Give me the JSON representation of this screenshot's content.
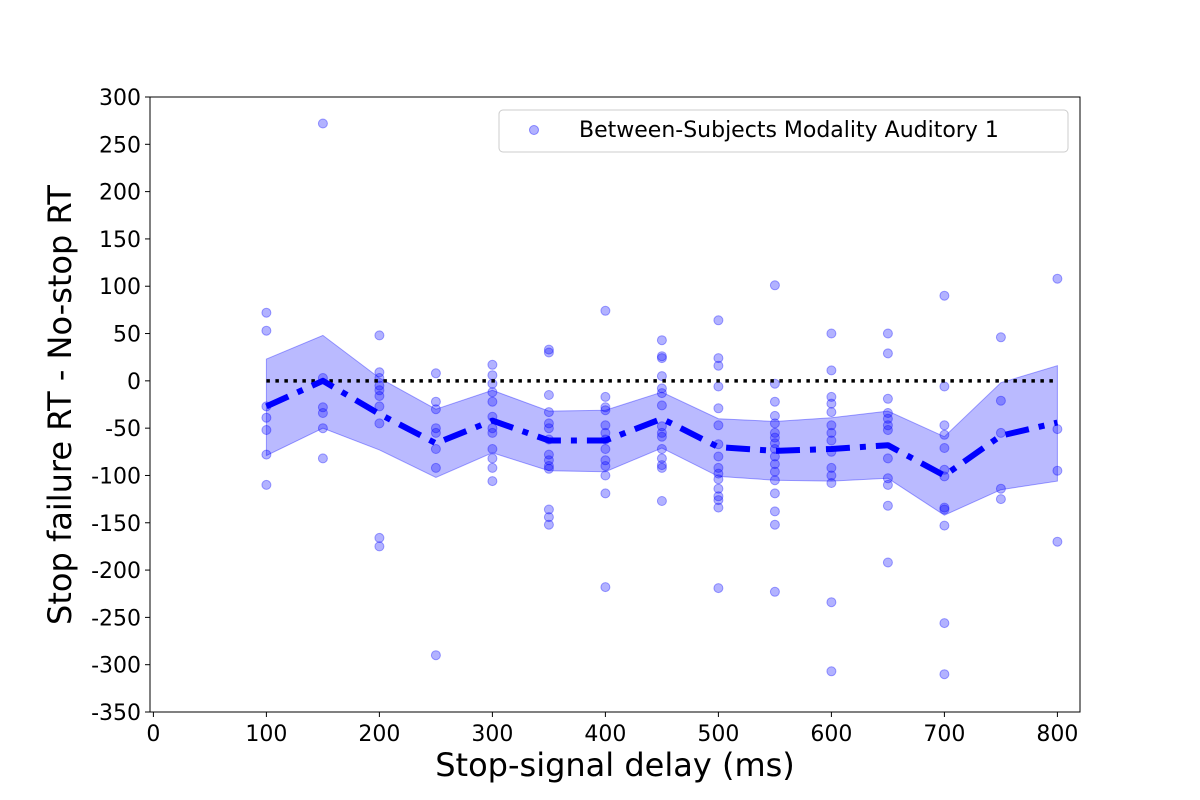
{
  "chart_data": {
    "type": "scatter",
    "xlabel": "Stop-signal delay (ms)",
    "ylabel": "Stop failure RT - No-stop RT",
    "xlim": [
      -3,
      820
    ],
    "ylim": [
      -350,
      300
    ],
    "xticks": [
      0,
      100,
      200,
      300,
      400,
      500,
      600,
      700,
      800
    ],
    "yticks": [
      300,
      250,
      200,
      150,
      100,
      50,
      0,
      -50,
      -100,
      -150,
      -200,
      -250,
      -300,
      -350
    ],
    "grid": false,
    "legend_position": "top-right",
    "reference_line_y": 0,
    "series": [
      {
        "name": "Between-Subjects Modality Auditory 1",
        "kind": "scatter",
        "color": "#0000ff",
        "points": [
          [
            100,
            72
          ],
          [
            100,
            53
          ],
          [
            100,
            -27
          ],
          [
            100,
            -39
          ],
          [
            100,
            -52
          ],
          [
            100,
            -78
          ],
          [
            100,
            -110
          ],
          [
            150,
            272
          ],
          [
            150,
            3
          ],
          [
            150,
            -28
          ],
          [
            150,
            -34
          ],
          [
            150,
            -50
          ],
          [
            150,
            -82
          ],
          [
            200,
            48
          ],
          [
            200,
            9
          ],
          [
            200,
            3
          ],
          [
            200,
            -5
          ],
          [
            200,
            -10
          ],
          [
            200,
            -16
          ],
          [
            200,
            -27
          ],
          [
            200,
            -45
          ],
          [
            200,
            -166
          ],
          [
            200,
            -175
          ],
          [
            250,
            8
          ],
          [
            250,
            -22
          ],
          [
            250,
            -30
          ],
          [
            250,
            -50
          ],
          [
            250,
            -55
          ],
          [
            250,
            -72
          ],
          [
            250,
            -92
          ],
          [
            250,
            -290
          ],
          [
            300,
            17
          ],
          [
            300,
            6
          ],
          [
            300,
            -3
          ],
          [
            300,
            -12
          ],
          [
            300,
            -22
          ],
          [
            300,
            -38
          ],
          [
            300,
            -50
          ],
          [
            300,
            -55
          ],
          [
            300,
            -72
          ],
          [
            300,
            -82
          ],
          [
            300,
            -92
          ],
          [
            300,
            -106
          ],
          [
            350,
            33
          ],
          [
            350,
            30
          ],
          [
            350,
            -15
          ],
          [
            350,
            -33
          ],
          [
            350,
            -45
          ],
          [
            350,
            -50
          ],
          [
            350,
            -62
          ],
          [
            350,
            -78
          ],
          [
            350,
            -84
          ],
          [
            350,
            -90
          ],
          [
            350,
            -93
          ],
          [
            350,
            -136
          ],
          [
            350,
            -144
          ],
          [
            350,
            -152
          ],
          [
            400,
            74
          ],
          [
            400,
            -17
          ],
          [
            400,
            -28
          ],
          [
            400,
            -31
          ],
          [
            400,
            -47
          ],
          [
            400,
            -55
          ],
          [
            400,
            -62
          ],
          [
            400,
            -72
          ],
          [
            400,
            -84
          ],
          [
            400,
            -90
          ],
          [
            400,
            -100
          ],
          [
            400,
            -119
          ],
          [
            400,
            -218
          ],
          [
            450,
            43
          ],
          [
            450,
            26
          ],
          [
            450,
            24
          ],
          [
            450,
            5
          ],
          [
            450,
            -8
          ],
          [
            450,
            -13
          ],
          [
            450,
            -26
          ],
          [
            450,
            -48
          ],
          [
            450,
            -55
          ],
          [
            450,
            -59
          ],
          [
            450,
            -72
          ],
          [
            450,
            -82
          ],
          [
            450,
            -89
          ],
          [
            450,
            -92
          ],
          [
            450,
            -127
          ],
          [
            500,
            64
          ],
          [
            500,
            24
          ],
          [
            500,
            16
          ],
          [
            500,
            -6
          ],
          [
            500,
            -29
          ],
          [
            500,
            -47
          ],
          [
            500,
            -67
          ],
          [
            500,
            -80
          ],
          [
            500,
            -92
          ],
          [
            500,
            -98
          ],
          [
            500,
            -104
          ],
          [
            500,
            -114
          ],
          [
            500,
            -122
          ],
          [
            500,
            -126
          ],
          [
            500,
            -134
          ],
          [
            500,
            -219
          ],
          [
            550,
            101
          ],
          [
            550,
            -3
          ],
          [
            550,
            -22
          ],
          [
            550,
            -37
          ],
          [
            550,
            -45
          ],
          [
            550,
            -55
          ],
          [
            550,
            -60
          ],
          [
            550,
            -66
          ],
          [
            550,
            -72
          ],
          [
            550,
            -80
          ],
          [
            550,
            -88
          ],
          [
            550,
            -96
          ],
          [
            550,
            -105
          ],
          [
            550,
            -119
          ],
          [
            550,
            -138
          ],
          [
            550,
            -152
          ],
          [
            550,
            -223
          ],
          [
            600,
            50
          ],
          [
            600,
            11
          ],
          [
            600,
            -17
          ],
          [
            600,
            -24
          ],
          [
            600,
            -33
          ],
          [
            600,
            -47
          ],
          [
            600,
            -55
          ],
          [
            600,
            -63
          ],
          [
            600,
            -75
          ],
          [
            600,
            -92
          ],
          [
            600,
            -100
          ],
          [
            600,
            -108
          ],
          [
            600,
            -234
          ],
          [
            600,
            -307
          ],
          [
            650,
            50
          ],
          [
            650,
            29
          ],
          [
            650,
            -19
          ],
          [
            650,
            -34
          ],
          [
            650,
            -40
          ],
          [
            650,
            -47
          ],
          [
            650,
            -52
          ],
          [
            650,
            -82
          ],
          [
            650,
            -103
          ],
          [
            650,
            -110
          ],
          [
            650,
            -132
          ],
          [
            650,
            -192
          ],
          [
            700,
            90
          ],
          [
            700,
            -6
          ],
          [
            700,
            -47
          ],
          [
            700,
            -57
          ],
          [
            700,
            -71
          ],
          [
            700,
            -94
          ],
          [
            700,
            -101
          ],
          [
            700,
            -134
          ],
          [
            700,
            -136
          ],
          [
            700,
            -153
          ],
          [
            700,
            -256
          ],
          [
            700,
            -310
          ],
          [
            750,
            46
          ],
          [
            750,
            -21
          ],
          [
            750,
            -55
          ],
          [
            750,
            -114
          ],
          [
            750,
            -125
          ],
          [
            800,
            108
          ],
          [
            800,
            -51
          ],
          [
            800,
            -95
          ],
          [
            800,
            -170
          ]
        ]
      },
      {
        "kind": "mean-line",
        "color": "#0000ff",
        "line_style": "dash-dot",
        "x": [
          100,
          150,
          200,
          250,
          300,
          350,
          400,
          450,
          500,
          550,
          600,
          650,
          700,
          750,
          800
        ],
        "y": [
          -27,
          0,
          -35,
          -66,
          -42,
          -63,
          -63,
          -40,
          -70,
          -74,
          -72,
          -68,
          -100,
          -58,
          -44
        ]
      },
      {
        "kind": "band",
        "color": "#0000ff",
        "x": [
          100,
          150,
          200,
          250,
          300,
          350,
          400,
          450,
          500,
          550,
          600,
          650,
          700,
          750,
          800
        ],
        "upper": [
          23,
          48,
          3,
          -30,
          -10,
          -32,
          -31,
          -12,
          -40,
          -43,
          -39,
          -32,
          -59,
          -2,
          16
        ],
        "lower": [
          -79,
          -50,
          -73,
          -102,
          -76,
          -95,
          -96,
          -71,
          -101,
          -105,
          -106,
          -103,
          -142,
          -115,
          -106
        ]
      }
    ]
  }
}
